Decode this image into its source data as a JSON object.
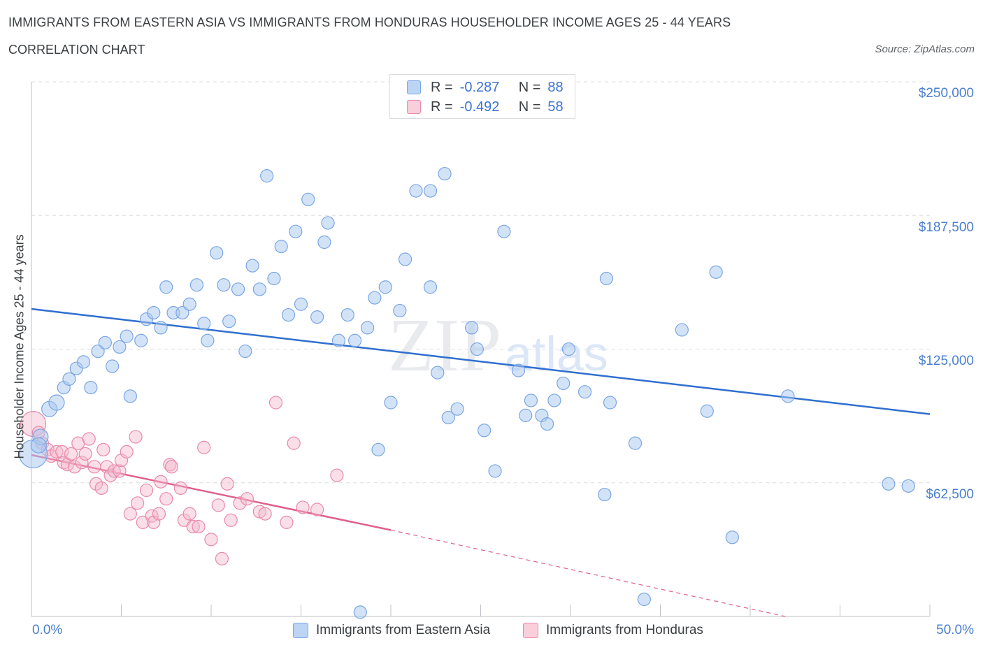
{
  "header": {
    "title": "IMMIGRANTS FROM EASTERN ASIA VS IMMIGRANTS FROM HONDURAS HOUSEHOLDER INCOME AGES 25 - 44 YEARS",
    "subtitle": "CORRELATION CHART",
    "source": "Source: ZipAtlas.com"
  },
  "watermark": {
    "zip": "ZIP",
    "atlas": "atlas"
  },
  "legend": {
    "series1": {
      "r_label": "R =",
      "r_value": "-0.287",
      "n_label": "N =",
      "n_value": "88"
    },
    "series2": {
      "r_label": "R =",
      "r_value": "-0.492",
      "n_label": "N =",
      "n_value": "58"
    }
  },
  "bottom_legend": {
    "series1": "Immigrants from Eastern Asia",
    "series2": "Immigrants from Honduras"
  },
  "colors": {
    "blue_fill": "#a8c8f0",
    "blue_stroke": "#7aa6e3",
    "blue_line": "#2f6fcf",
    "pink_fill": "#f5b8cc",
    "pink_stroke": "#e98aa9",
    "pink_line": "#e0608c",
    "tick_text": "#4a7fd0",
    "grid": "#dadce0"
  },
  "chart_data": {
    "type": "scatter",
    "title": "IMMIGRANTS FROM EASTERN ASIA VS IMMIGRANTS FROM HONDURAS HOUSEHOLDER INCOME AGES 25 - 44 YEARS",
    "subtitle": "CORRELATION CHART",
    "xlabel": "",
    "ylabel": "Householder Income Ages 25 - 44 years",
    "xlim": [
      0,
      50
    ],
    "ylim": [
      0,
      250000
    ],
    "x_tick_labels": [
      "0.0%",
      "50.0%"
    ],
    "y_ticks": [
      62500,
      125000,
      187500,
      250000
    ],
    "y_tick_labels": [
      "$62,500",
      "$125,000",
      "$187,500",
      "$250,000"
    ],
    "grid": "horizontal dashed",
    "legend_position": "top-center",
    "series": [
      {
        "name": "Immigrants from Eastern Asia",
        "color": "#a8c8f0",
        "R": -0.287,
        "N": 88,
        "trendline": {
          "x": [
            0,
            50
          ],
          "y": [
            143800,
            94600
          ]
        },
        "points": [
          [
            0.1,
            76000
          ],
          [
            0.5,
            84000
          ],
          [
            0.4,
            80000
          ],
          [
            1.0,
            97000
          ],
          [
            1.4,
            100000
          ],
          [
            1.8,
            107000
          ],
          [
            2.1,
            111000
          ],
          [
            2.5,
            116000
          ],
          [
            2.9,
            119000
          ],
          [
            3.3,
            107000
          ],
          [
            3.7,
            124000
          ],
          [
            4.1,
            128000
          ],
          [
            4.5,
            117000
          ],
          [
            4.9,
            126000
          ],
          [
            5.3,
            131000
          ],
          [
            5.5,
            103000
          ],
          [
            6.1,
            129000
          ],
          [
            6.4,
            139000
          ],
          [
            6.8,
            142000
          ],
          [
            7.2,
            135000
          ],
          [
            7.5,
            154000
          ],
          [
            7.9,
            142000
          ],
          [
            8.4,
            142000
          ],
          [
            8.8,
            146000
          ],
          [
            9.2,
            155000
          ],
          [
            9.6,
            137000
          ],
          [
            9.8,
            129000
          ],
          [
            10.3,
            170000
          ],
          [
            10.7,
            155000
          ],
          [
            11.0,
            138000
          ],
          [
            11.5,
            153000
          ],
          [
            11.9,
            124000
          ],
          [
            12.3,
            164000
          ],
          [
            12.7,
            153000
          ],
          [
            13.1,
            206000
          ],
          [
            13.5,
            158000
          ],
          [
            13.9,
            173000
          ],
          [
            14.3,
            141000
          ],
          [
            14.7,
            180000
          ],
          [
            15.0,
            146000
          ],
          [
            15.4,
            195000
          ],
          [
            15.9,
            140000
          ],
          [
            16.3,
            175000
          ],
          [
            16.5,
            184000
          ],
          [
            17.1,
            129000
          ],
          [
            17.6,
            141000
          ],
          [
            18.0,
            129000
          ],
          [
            18.7,
            135000
          ],
          [
            19.1,
            149000
          ],
          [
            19.3,
            78000
          ],
          [
            19.7,
            154000
          ],
          [
            20.0,
            100000
          ],
          [
            20.5,
            143000
          ],
          [
            20.8,
            167000
          ],
          [
            21.4,
            199000
          ],
          [
            22.2,
            154000
          ],
          [
            22.2,
            199000
          ],
          [
            22.6,
            114000
          ],
          [
            23.0,
            207000
          ],
          [
            23.2,
            93000
          ],
          [
            23.7,
            97000
          ],
          [
            24.5,
            135000
          ],
          [
            24.8,
            125000
          ],
          [
            25.2,
            87000
          ],
          [
            25.8,
            68000
          ],
          [
            26.3,
            180000
          ],
          [
            27.1,
            115000
          ],
          [
            27.5,
            94000
          ],
          [
            27.8,
            101000
          ],
          [
            28.4,
            94000
          ],
          [
            28.7,
            90000
          ],
          [
            29.1,
            101000
          ],
          [
            29.6,
            109000
          ],
          [
            29.9,
            125000
          ],
          [
            30.8,
            105000
          ],
          [
            31.9,
            57000
          ],
          [
            32.2,
            100000
          ],
          [
            32.0,
            158000
          ],
          [
            33.6,
            81000
          ],
          [
            34.1,
            8000
          ],
          [
            36.2,
            134000
          ],
          [
            37.6,
            96000
          ],
          [
            38.1,
            161000
          ],
          [
            39.0,
            37000
          ],
          [
            42.1,
            103000
          ],
          [
            47.7,
            62000
          ],
          [
            48.8,
            61000
          ],
          [
            18.3,
            2000
          ]
        ]
      },
      {
        "name": "Immigrants from Honduras",
        "color": "#f5b8cc",
        "R": -0.492,
        "N": 58,
        "trendline": {
          "x": [
            0,
            20
          ],
          "y": [
            75500,
            40400
          ]
        },
        "trendline_dashed_extension": {
          "x": [
            20,
            50
          ],
          "y": [
            40400,
            -14800
          ]
        },
        "points": [
          [
            0.1,
            90000
          ],
          [
            0.4,
            86000
          ],
          [
            0.6,
            81000
          ],
          [
            0.9,
            78000
          ],
          [
            1.1,
            75000
          ],
          [
            1.4,
            77000
          ],
          [
            1.7,
            77000
          ],
          [
            1.8,
            72000
          ],
          [
            2.0,
            71000
          ],
          [
            2.2,
            76000
          ],
          [
            2.4,
            70000
          ],
          [
            2.6,
            81000
          ],
          [
            2.8,
            72000
          ],
          [
            3.0,
            76000
          ],
          [
            3.2,
            83000
          ],
          [
            3.5,
            70000
          ],
          [
            3.6,
            62000
          ],
          [
            3.9,
            60000
          ],
          [
            4.0,
            78000
          ],
          [
            4.2,
            70000
          ],
          [
            4.4,
            66000
          ],
          [
            4.6,
            68000
          ],
          [
            4.9,
            68000
          ],
          [
            5.0,
            73000
          ],
          [
            5.3,
            77000
          ],
          [
            5.5,
            48000
          ],
          [
            5.8,
            84000
          ],
          [
            5.9,
            53000
          ],
          [
            6.2,
            44000
          ],
          [
            6.4,
            59000
          ],
          [
            6.7,
            47000
          ],
          [
            6.8,
            44000
          ],
          [
            7.1,
            48000
          ],
          [
            7.2,
            63000
          ],
          [
            7.5,
            55000
          ],
          [
            7.7,
            71000
          ],
          [
            7.8,
            70000
          ],
          [
            8.3,
            60000
          ],
          [
            8.5,
            45000
          ],
          [
            8.8,
            48000
          ],
          [
            9.0,
            42000
          ],
          [
            9.3,
            42000
          ],
          [
            9.6,
            79000
          ],
          [
            10.0,
            36000
          ],
          [
            10.4,
            52000
          ],
          [
            10.6,
            27000
          ],
          [
            10.9,
            62000
          ],
          [
            11.1,
            45000
          ],
          [
            11.6,
            53000
          ],
          [
            12.0,
            55000
          ],
          [
            12.7,
            49000
          ],
          [
            13.0,
            48000
          ],
          [
            13.6,
            100000
          ],
          [
            14.2,
            44000
          ],
          [
            14.6,
            81000
          ],
          [
            15.1,
            51000
          ],
          [
            15.9,
            50000
          ],
          [
            17.0,
            66000
          ]
        ]
      }
    ]
  }
}
